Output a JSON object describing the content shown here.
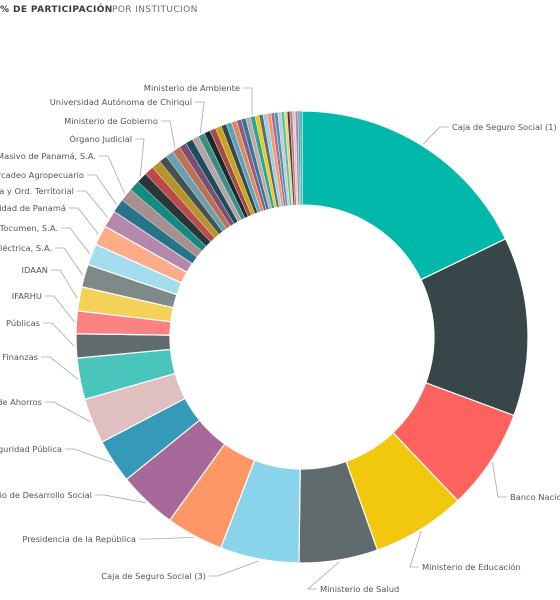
{
  "tabs": [
    {
      "label": "% DE PARTICIPACIÓN",
      "active": true
    },
    {
      "label": "POR INSTITUCION",
      "active": false
    }
  ],
  "chart_data": {
    "type": "pie",
    "donut": true,
    "legend": "none",
    "labels_outside": true,
    "slices": [
      {
        "name": "Caja de Seguro Social (1)",
        "value": 18.7,
        "color": "#01B8AA",
        "label": "Caja de Seguro Social (1)"
      },
      {
        "name": "",
        "value": 13.4,
        "color": "#374649",
        "label": ""
      },
      {
        "name": "Banco Nacional",
        "value": 7.6,
        "color": "#FD625E",
        "label": "Banco Nacio"
      },
      {
        "name": "Ministerio de Educación",
        "value": 7.0,
        "color": "#F2C80F",
        "label": "Ministerio de Educación"
      },
      {
        "name": "Ministerio de Salud",
        "value": 5.9,
        "color": "#5F6B6D",
        "label": "Ministerio de Salud"
      },
      {
        "name": "Caja de Seguro Social (3)",
        "value": 5.9,
        "color": "#8AD4EB",
        "label": "Caja de Seguro Social (3)"
      },
      {
        "name": "Presidencia de la República",
        "value": 4.3,
        "color": "#FE9666",
        "label": "Presidencia de la República"
      },
      {
        "name": "Ministerio de Desarrollo Social",
        "value": 4.4,
        "color": "#A66999",
        "label": "rio de Desarrollo Social"
      },
      {
        "name": "Ministerio de Seguridad Pública",
        "value": 3.3,
        "color": "#3599B8",
        "label": "eguridad Pública"
      },
      {
        "name": "Caja de Ahorros",
        "value": 3.4,
        "color": "#DFBFBF",
        "label": "de Ahorros"
      },
      {
        "name": "Ministerio de Economía y Finanzas",
        "value": 3.1,
        "color": "#4AC5BB",
        "label": "Finanzas"
      },
      {
        "name": "Ministerio de Obras Públicas",
        "value": 1.8,
        "color": "#5F6B6D",
        "label": "Públicas"
      },
      {
        "name": "IFARHU",
        "value": 1.7,
        "color": "#FB8281",
        "label": "IFARHU"
      },
      {
        "name": "IDAAN",
        "value": 1.8,
        "color": "#F4D25A",
        "label": "IDAAN"
      },
      {
        "name": "Empresa de Transmisión Eléctrica, S.A.",
        "value": 1.7,
        "color": "#7F898A",
        "label": "Eléctrica, S.A."
      },
      {
        "name": "Aeropuerto Internacional de Tocumen, S.A.",
        "value": 1.6,
        "color": "#A4DDEE",
        "label": "e Tocumen, S.A."
      },
      {
        "name": "Universidad de Panamá",
        "value": 1.5,
        "color": "#FDAB89",
        "label": "ersidad de Panamá"
      },
      {
        "name": "Ministerio de Vivienda y Ord. Territorial",
        "value": 1.3,
        "color": "#B687AC",
        "label": "enda y Ord. Territorial"
      },
      {
        "name": "Instituto de Mercadeo Agropecuario",
        "value": 1.0,
        "color": "#28738A",
        "label": "Mercadeo Agropecuario"
      },
      {
        "name": "Transporte Masivo de Panamá, S.A.",
        "value": 1.0,
        "color": "#A78F8F",
        "label": "porte Masivo de Panamá, S.A."
      },
      {
        "name": "",
        "value": 0.8,
        "color": "#168980",
        "label": ""
      },
      {
        "name": "Órgano Judicial",
        "value": 0.8,
        "color": "#293537",
        "label": "Órgano Judicial"
      },
      {
        "name": "",
        "value": 0.7,
        "color": "#BB4A4A",
        "label": ""
      },
      {
        "name": "",
        "value": 0.7,
        "color": "#B59525",
        "label": ""
      },
      {
        "name": "",
        "value": 0.6,
        "color": "#475052",
        "label": ""
      },
      {
        "name": "",
        "value": 0.6,
        "color": "#6A9FB0",
        "label": ""
      },
      {
        "name": "Ministerio de Gobierno",
        "value": 0.6,
        "color": "#BD7150",
        "label": "Ministerio de Gobierno"
      },
      {
        "name": "",
        "value": 0.55,
        "color": "#7B4F71",
        "label": ""
      },
      {
        "name": "",
        "value": 0.55,
        "color": "#1B4D5C",
        "label": ""
      },
      {
        "name": "",
        "value": 0.5,
        "color": "#B6A4A4",
        "label": ""
      },
      {
        "name": "Universidad Autónoma de Chiriquí",
        "value": 0.5,
        "color": "#3E8C83",
        "label": "Universidad Autónoma de Chiriquí"
      },
      {
        "name": "",
        "value": 0.45,
        "color": "#1A2B2E",
        "label": ""
      },
      {
        "name": "",
        "value": 0.45,
        "color": "#A84945",
        "label": ""
      },
      {
        "name": "",
        "value": 0.45,
        "color": "#C9A418",
        "label": ""
      },
      {
        "name": "",
        "value": 0.4,
        "color": "#3C474A",
        "label": ""
      },
      {
        "name": "",
        "value": 0.4,
        "color": "#58A2C2",
        "label": ""
      },
      {
        "name": "",
        "value": 0.4,
        "color": "#D98C5F",
        "label": ""
      },
      {
        "name": "",
        "value": 0.35,
        "color": "#8E5A82",
        "label": ""
      },
      {
        "name": "",
        "value": 0.35,
        "color": "#2F7A96",
        "label": ""
      },
      {
        "name": "",
        "value": 0.35,
        "color": "#C7A6A6",
        "label": ""
      },
      {
        "name": "Ministerio de Ambiente",
        "value": 0.35,
        "color": "#2AA59A",
        "label": "Ministerio de Ambiente"
      },
      {
        "name": "",
        "value": 0.3,
        "color": "#F2C80F",
        "label": ""
      },
      {
        "name": "",
        "value": 0.3,
        "color": "#5F6B6D",
        "label": ""
      },
      {
        "name": "",
        "value": 0.3,
        "color": "#8AD4EB",
        "label": ""
      },
      {
        "name": "",
        "value": 0.3,
        "color": "#FE9666",
        "label": ""
      },
      {
        "name": "",
        "value": 0.25,
        "color": "#A66999",
        "label": ""
      },
      {
        "name": "",
        "value": 0.25,
        "color": "#3599B8",
        "label": ""
      },
      {
        "name": "",
        "value": 0.25,
        "color": "#DFBFBF",
        "label": ""
      },
      {
        "name": "",
        "value": 0.25,
        "color": "#4AC5BB",
        "label": ""
      },
      {
        "name": "",
        "value": 0.2,
        "color": "#F4D25A",
        "label": ""
      },
      {
        "name": "",
        "value": 0.2,
        "color": "#374649",
        "label": ""
      },
      {
        "name": "",
        "value": 0.2,
        "color": "#FD625E",
        "label": ""
      },
      {
        "name": "",
        "value": 0.2,
        "color": "#A4DDEE",
        "label": ""
      },
      {
        "name": "",
        "value": 0.2,
        "color": "#B687AC",
        "label": ""
      },
      {
        "name": "",
        "value": 0.15,
        "color": "#7F898A",
        "label": ""
      },
      {
        "name": "",
        "value": 0.15,
        "color": "#01B8AA",
        "label": ""
      }
    ]
  }
}
